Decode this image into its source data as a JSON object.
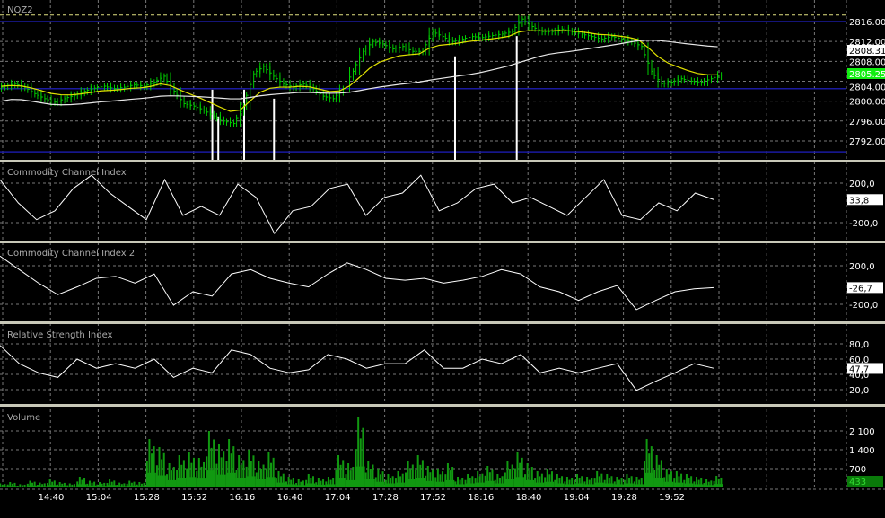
{
  "colors": {
    "background": "#000000",
    "candle": "#00cc00",
    "fast_ma": "#e0e000",
    "slow_ma": "#e8e8e8",
    "level_line": "#1a1aa0",
    "last_price_line": "#00cc00",
    "indicator_line": "#ffffff",
    "volume": "#119911",
    "grid": "#777777",
    "separator": "#c8c8b8"
  },
  "time_axis": {
    "labels": [
      "14:40",
      "15:04",
      "15:28",
      "15:52",
      "16:16",
      "16:40",
      "17:04",
      "17:28",
      "17:52",
      "18:16",
      "18:40",
      "19:04",
      "19:28",
      "19:52"
    ],
    "start": "14:15",
    "interval_min": 5
  },
  "price_panel": {
    "symbol": "NQZ2",
    "ticks": [
      "2816.00",
      "2812.00",
      "2808.00",
      "2804.00",
      "2800.00",
      "2796.00",
      "2792.00"
    ],
    "tick_values": [
      2816,
      2812,
      2808,
      2804,
      2800,
      2796,
      2792
    ],
    "levels": [
      2816,
      2802.5,
      2789.8
    ],
    "dashed_level": 2817.3,
    "last_price": "2805.25",
    "ma_price": "2808.31",
    "closes": [
      2803.0,
      2803.5,
      2802.8,
      2801.5,
      2800.5,
      2799.8,
      2800.5,
      2801.2,
      2802.0,
      2802.6,
      2803.0,
      2802.5,
      2802.8,
      2803.3,
      2803.0,
      2803.8,
      2805.0,
      2802.0,
      2799.5,
      2799.0,
      2798.2,
      2797.0,
      2796.0,
      2795.5,
      2799.0,
      2805.5,
      2807.0,
      2805.0,
      2803.5,
      2802.8,
      2803.5,
      2802.5,
      2801.0,
      2800.5,
      2802.5,
      2806.0,
      2810.0,
      2812.0,
      2811.5,
      2810.5,
      2811.0,
      2810.0,
      2810.0,
      2814.0,
      2813.0,
      2812.0,
      2812.5,
      2813.0,
      2812.8,
      2813.2,
      2813.5,
      2814.0,
      2816.5,
      2815.0,
      2814.0,
      2814.0,
      2814.5,
      2814.0,
      2813.5,
      2813.0,
      2812.5,
      2813.0,
      2812.5,
      2812.0,
      2811.0,
      2806.0,
      2803.5,
      2803.8,
      2804.5,
      2804.0,
      2803.8,
      2804.5,
      2805.25
    ],
    "markers": [
      {
        "time": "16:01",
        "top": 2802.3
      },
      {
        "time": "16:04",
        "top": 2796.9
      },
      {
        "time": "16:17",
        "top": 2802.3
      },
      {
        "time": "16:32",
        "top": 2800.5
      },
      {
        "time": "18:03",
        "top": 2809.0
      },
      {
        "time": "18:34",
        "top": 2813.1
      }
    ]
  },
  "cci_panel": {
    "title": "Commodity Channel Index",
    "ticks": [
      "200,0",
      "-200,0"
    ],
    "tick_values": [
      200,
      -200
    ],
    "current": "33,8",
    "values": [
      236,
      0,
      -170,
      -80,
      145,
      280,
      100,
      -36,
      -170,
      236,
      -127,
      -36,
      -127,
      190,
      55,
      -310,
      -80,
      -36,
      145,
      190,
      -127,
      55,
      100,
      280,
      -80,
      0,
      145,
      190,
      0,
      55,
      -36,
      -127,
      55,
      236,
      -127,
      -170,
      0,
      -80,
      100,
      34
    ]
  },
  "cci2_panel": {
    "title": "Commodity Channel Index 2",
    "ticks": [
      "200,0",
      "-200,0"
    ],
    "tick_values": [
      200,
      -200
    ],
    "current": "-26,7",
    "values": [
      300,
      160,
      20,
      -100,
      -20,
      70,
      90,
      20,
      115,
      -210,
      -70,
      -115,
      115,
      160,
      70,
      20,
      -20,
      115,
      230,
      160,
      70,
      50,
      70,
      20,
      50,
      90,
      160,
      115,
      -20,
      -70,
      -160,
      -70,
      -5,
      -255,
      -160,
      -70,
      -40,
      -27
    ]
  },
  "rsi_panel": {
    "title": "Relative Strength Index",
    "ticks": [
      "80,0",
      "60,0",
      "40,0",
      "20,0"
    ],
    "tick_values": [
      80,
      60,
      40,
      20
    ],
    "current": "47,7",
    "values": [
      78,
      54,
      42,
      36,
      60,
      48,
      54,
      48,
      60,
      36,
      48,
      42,
      72,
      66,
      48,
      42,
      46,
      66,
      60,
      48,
      54,
      54,
      72,
      48,
      48,
      60,
      54,
      66,
      42,
      48,
      42,
      48,
      54,
      19,
      31,
      42,
      54,
      48
    ]
  },
  "volume_panel": {
    "title": "Volume",
    "ticks": [
      "2 100",
      "1 400",
      "700"
    ],
    "tick_values": [
      2100,
      1400,
      700
    ],
    "current": "433",
    "values": [
      150,
      200,
      120,
      250,
      180,
      300,
      200,
      150,
      400,
      250,
      200,
      300,
      180,
      250,
      200,
      1800,
      1500,
      900,
      1200,
      1300,
      1100,
      2100,
      1600,
      1800,
      1200,
      1400,
      1000,
      1300,
      600,
      400,
      300,
      500,
      350,
      400,
      1200,
      900,
      2600,
      1000,
      700,
      500,
      600,
      1000,
      1200,
      800,
      700,
      900,
      400,
      500,
      600,
      800,
      500,
      1000,
      1300,
      900,
      600,
      700,
      500,
      400,
      500,
      400,
      600,
      500,
      400,
      500,
      400,
      1800,
      1200,
      700,
      600,
      500,
      400,
      300,
      433
    ]
  }
}
